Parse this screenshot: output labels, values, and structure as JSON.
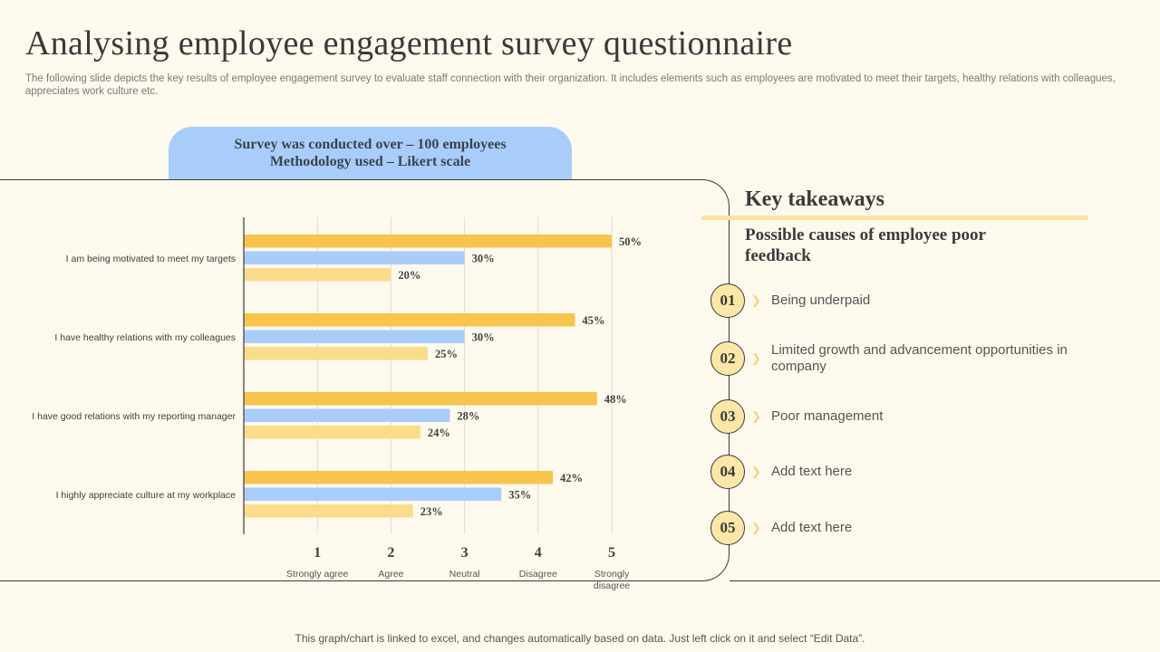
{
  "title": "Analysing employee engagement survey questionnaire",
  "subtitle": "The following slide depicts the key results of employee engagement survey to  evaluate staff connection with their organization. It includes elements such as employees are motivated to meet their targets, healthy relations with colleagues, appreciates work culture etc.",
  "survey_box": {
    "line1": "Survey was conducted over – 100 employees",
    "line2": "Methodology used – Likert scale"
  },
  "chart_data": {
    "type": "bar",
    "orientation": "horizontal",
    "categories": [
      "I am being motivated to meet my targets",
      "I have healthy relations with my colleagues",
      "I have good relations with my reporting manager",
      "I highly appreciate culture at my workplace"
    ],
    "series": [
      {
        "values": [
          50,
          45,
          48,
          42
        ],
        "color": "#f7c44d"
      },
      {
        "values": [
          30,
          30,
          28,
          35
        ],
        "color": "#a9cdfa"
      },
      {
        "values": [
          20,
          25,
          24,
          23
        ],
        "color": "#fadc8c"
      }
    ],
    "value_suffix": "%",
    "x_scale_max_percent": 50,
    "x_ticks": [
      "1",
      "2",
      "3",
      "4",
      "5"
    ],
    "x_tick_labels": [
      "Strongly agree",
      "Agree",
      "Neutral",
      "Disagree",
      [
        "Strongly",
        "disagree"
      ]
    ],
    "grid": "vertical"
  },
  "takeaways": {
    "title": "Key takeaways",
    "subtitle": "Possible causes of employee poor feedback",
    "items": [
      {
        "num": "01",
        "text": "Being underpaid"
      },
      {
        "num": "02",
        "text": "Limited growth and advancement opportunities in company"
      },
      {
        "num": "03",
        "text": "Poor management"
      },
      {
        "num": "04",
        "text": "Add text here"
      },
      {
        "num": "05",
        "text": "Add text here"
      }
    ],
    "chevron_icon": "chevron-right-icon"
  },
  "footer": "This graph/chart is linked to excel,  and changes automatically based on data. Just left click on it and select “Edit Data”.",
  "colors": {
    "background": "#fdf9ed",
    "accent_yellow": "#f7c44d",
    "accent_blue": "#a9cdfa",
    "light_yellow": "#fadc8c"
  }
}
